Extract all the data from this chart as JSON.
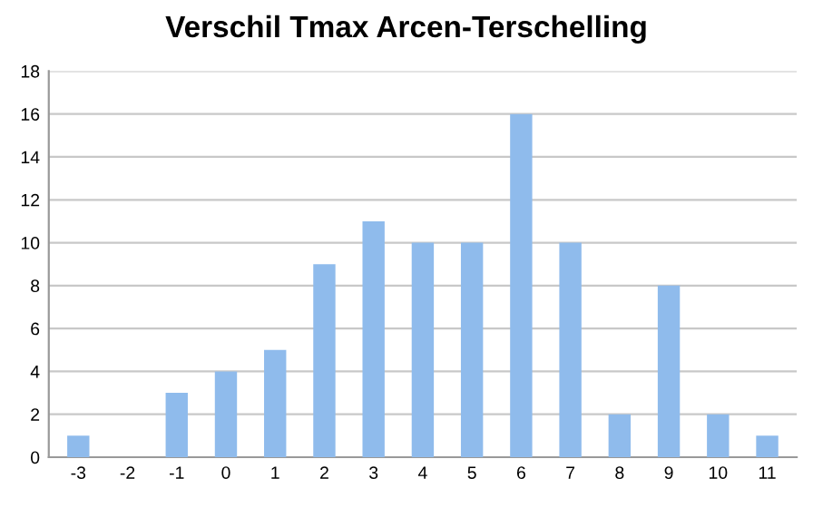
{
  "chart_data": {
    "type": "bar",
    "title": "Verschil Tmax Arcen-Terschelling",
    "categories": [
      "-3",
      "-2",
      "-1",
      "0",
      "1",
      "2",
      "3",
      "4",
      "5",
      "6",
      "7",
      "8",
      "9",
      "10",
      "11"
    ],
    "values": [
      1,
      0,
      3,
      4,
      5,
      9,
      11,
      10,
      10,
      16,
      10,
      2,
      8,
      2,
      1
    ],
    "color": "#8fbbec",
    "ylim": [
      0,
      18
    ],
    "yticks": [
      0,
      2,
      4,
      6,
      8,
      10,
      12,
      14,
      16,
      18
    ],
    "grid": "y"
  }
}
